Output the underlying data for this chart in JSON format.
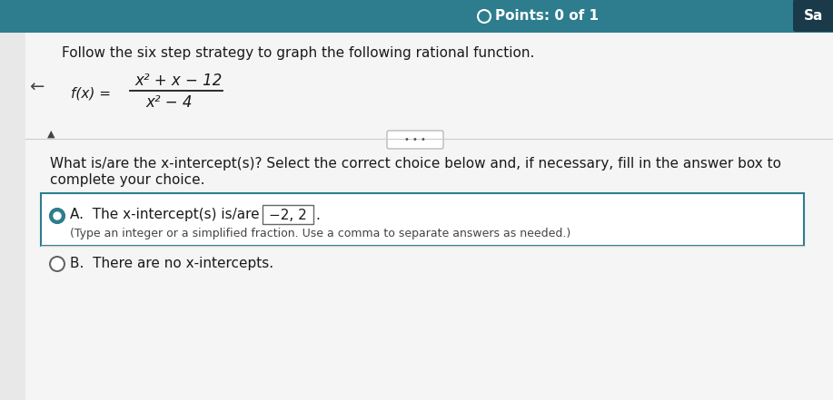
{
  "bg_color_top": "#2d7d8e",
  "bg_color_main": "#e8e8e8",
  "bg_color_white": "#f5f5f5",
  "points_text": "Points: 0 of 1",
  "sa_text": "Sa",
  "instruction": "Follow the six step strategy to graph the following rational function.",
  "numerator": "x² + x − 12",
  "denominator": "x² − 4",
  "dots_text": "• • •",
  "question_line1": "What is/are the x-intercept(s)? Select the correct choice below and, if necessary, fill in the answer box to",
  "question_line2": "complete your choice.",
  "choice_A_text": "A.  The x-intercept(s) is/are",
  "choice_A_box": "−2, 2",
  "choice_A_sub": "(Type an integer or a simplified fraction. Use a comma to separate answers as needed.)",
  "choice_B_text": "B.  There are no x-intercepts.",
  "arrow_left": "←",
  "arrow_up": "▲",
  "teal_color": "#2d7d8e",
  "dark_btn_color": "#1a3a4a",
  "text_color": "#1a1a1a",
  "radio_fill_A": "#2d7d8e"
}
